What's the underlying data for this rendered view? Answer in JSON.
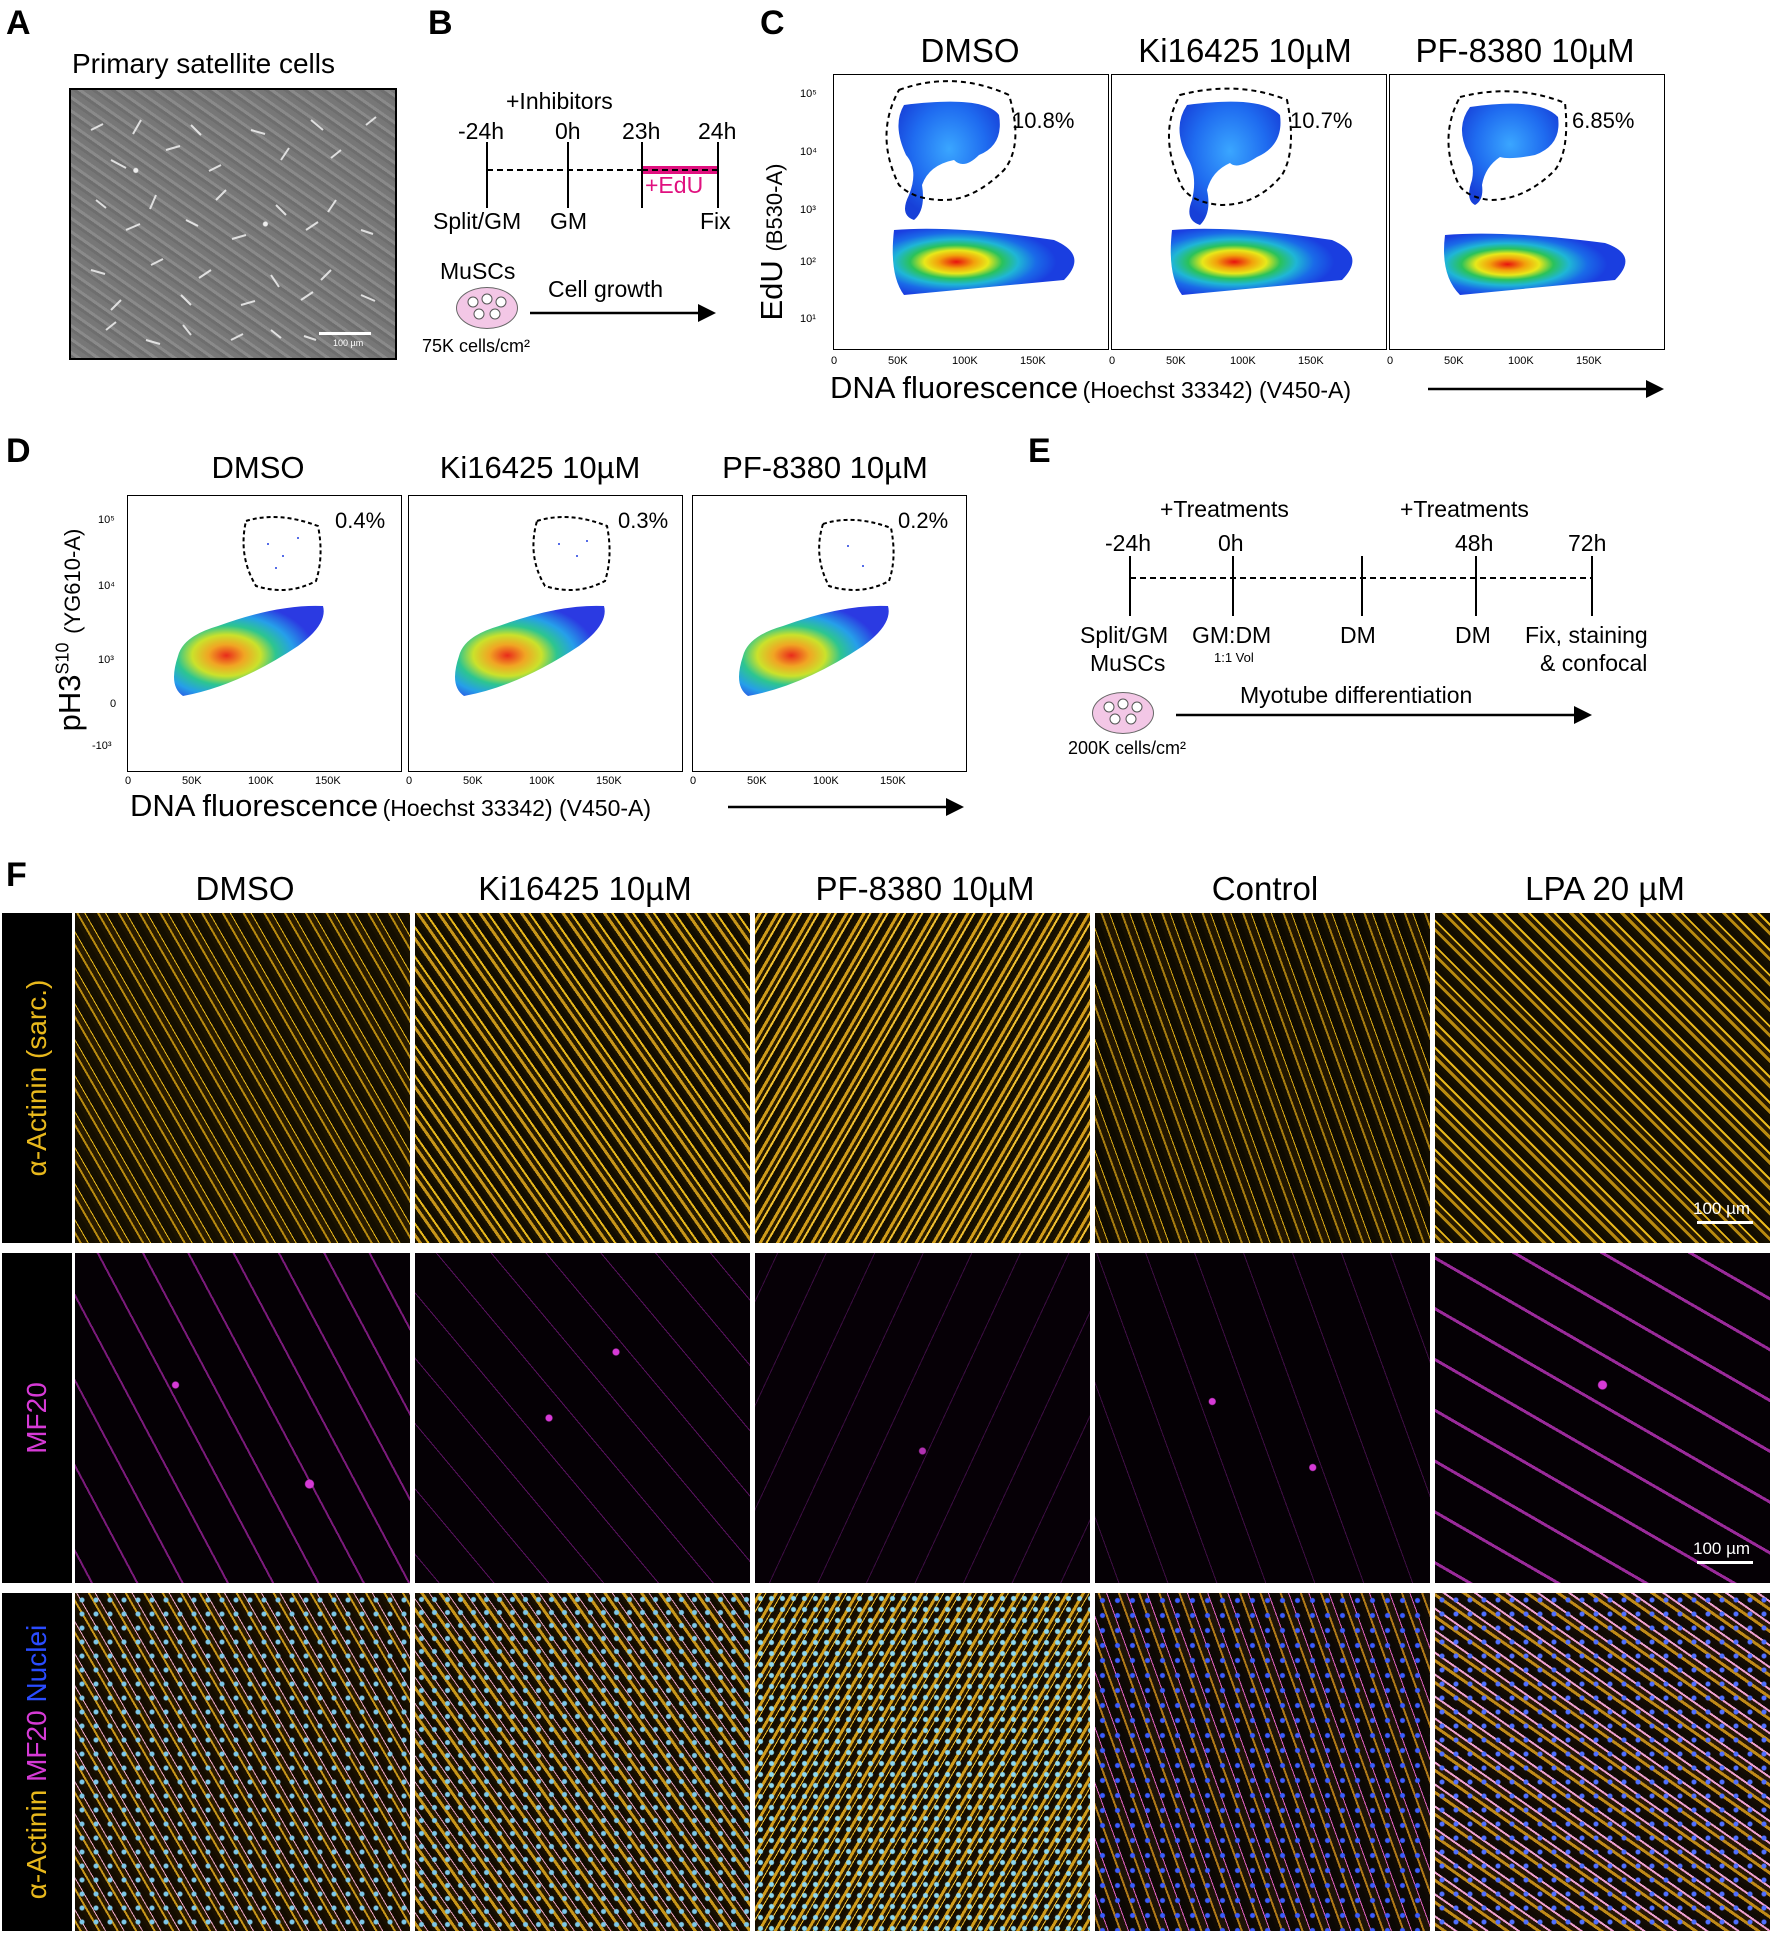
{
  "panels": {
    "A": {
      "letter": "A",
      "title": "Primary satellite cells",
      "scale_label": "100 µm"
    },
    "B": {
      "letter": "B",
      "inhibitors_label": "+Inhibitors",
      "timepoints": [
        "-24h",
        "0h",
        "23h",
        "24h"
      ],
      "events": [
        "Split/GM",
        "GM",
        "Fix"
      ],
      "edu_label": "+EdU",
      "cells_label": "MuSCs",
      "density_label": "75K cells/cm²",
      "arrow_label": "Cell growth"
    },
    "C": {
      "letter": "C",
      "conditions": [
        "DMSO",
        "Ki16425 10µM",
        "PF-8380 10µM"
      ],
      "gate_percents": [
        "10.8%",
        "10.7%",
        "6.85%"
      ],
      "ylabel_main": "EdU",
      "ylabel_sub": "(B530-A)",
      "xlabel_main": "DNA fluorescence",
      "xlabel_sub": "(Hoechst 33342) (V450-A)",
      "yticks": [
        "10⁵",
        "10⁴",
        "10³",
        "10²",
        "10¹"
      ],
      "xticks": [
        "0",
        "50K",
        "100K",
        "150K"
      ]
    },
    "D": {
      "letter": "D",
      "conditions": [
        "DMSO",
        "Ki16425 10µM",
        "PF-8380 10µM"
      ],
      "gate_percents": [
        "0.4%",
        "0.3%",
        "0.2%"
      ],
      "ylabel_main": "pH3",
      "ylabel_sup": "S10",
      "ylabel_sub": "(YG610-A)",
      "xlabel_main": "DNA fluorescence",
      "xlabel_sub": "(Hoechst 33342) (V450-A)",
      "yticks": [
        "10⁵",
        "10⁴",
        "10³",
        "0",
        "-10³"
      ],
      "xticks": [
        "0",
        "50K",
        "100K",
        "150K"
      ]
    },
    "E": {
      "letter": "E",
      "treatments_label_1": "+Treatments",
      "treatments_label_2": "+Treatments",
      "timepoints": [
        "-24h",
        "0h",
        "48h",
        "72h"
      ],
      "events": [
        "Split/GM",
        "GM:DM",
        "DM",
        "DM",
        "Fix, staining"
      ],
      "events_line2": [
        "MuSCs",
        "1:1 Vol",
        "& confocal"
      ],
      "density_label": "200K cells/cm²",
      "arrow_label": "Myotube differentiation"
    },
    "F": {
      "letter": "F",
      "columns": [
        "DMSO",
        "Ki16425 10µM",
        "PF-8380 10µM",
        "Control",
        "LPA 20 µM"
      ],
      "row_labels": {
        "row1": "α-Actinin (sarc.)",
        "row2": "MF20",
        "row3_a": "α-Actinin",
        "row3_b": "MF20",
        "row3_c": "Nuclei"
      },
      "scale_label": "100 µm"
    }
  },
  "colors": {
    "edu_magenta": "#e0117f",
    "actinin_yellow": "#e8b81c",
    "mf20_magenta": "#d63ad6",
    "nuclei_blue": "#2a4cff"
  }
}
